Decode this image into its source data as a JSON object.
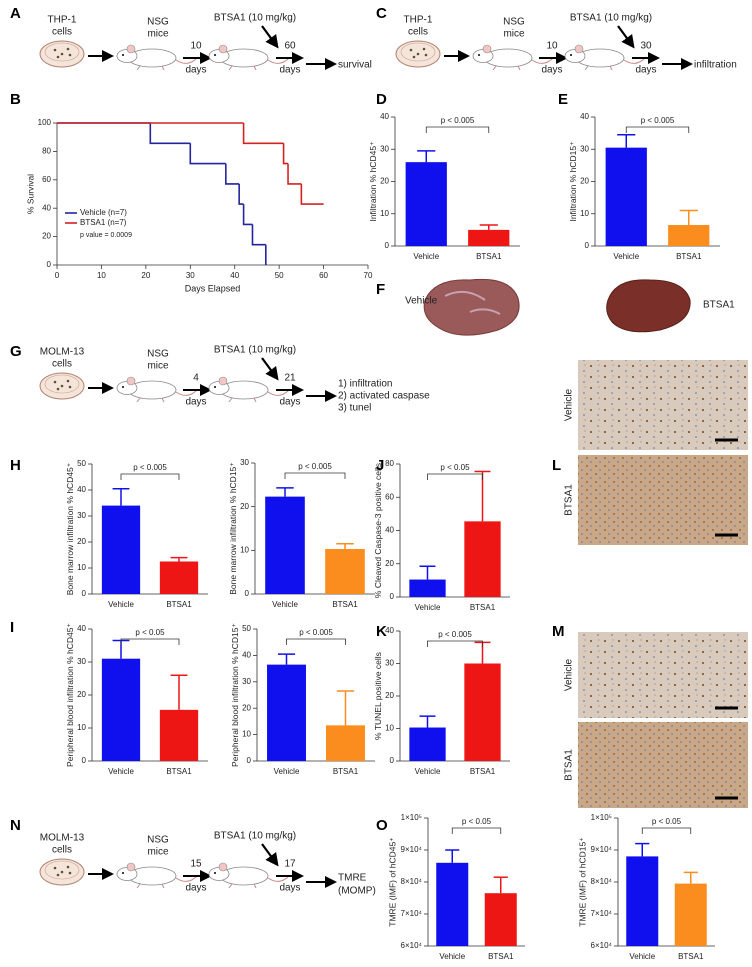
{
  "panel_labels": [
    "A",
    "B",
    "C",
    "D",
    "E",
    "F",
    "G",
    "H",
    "I",
    "J",
    "K",
    "L",
    "M",
    "N",
    "O"
  ],
  "schematics": [
    {
      "cells": [
        "THP-1",
        "cells"
      ],
      "mice": [
        "NSG",
        "mice"
      ],
      "treatment": "BTSA1 (10 mg/kg)",
      "interval_1": [
        "10",
        "days"
      ],
      "interval_2": [
        "60",
        "days"
      ],
      "outcome": [
        "survival"
      ]
    },
    {
      "cells": [
        "THP-1",
        "cells"
      ],
      "mice": [
        "NSG",
        "mice"
      ],
      "treatment": "BTSA1 (10 mg/kg)",
      "interval_1": [
        "10",
        "days"
      ],
      "interval_2": [
        "30",
        "days"
      ],
      "outcome": [
        "infiltration"
      ]
    },
    {
      "cells": [
        "MOLM-13",
        "cells"
      ],
      "mice": [
        "NSG",
        "mice"
      ],
      "treatment": "BTSA1 (10 mg/kg)",
      "interval_1": [
        "4",
        "days"
      ],
      "interval_2": [
        "21",
        "days"
      ],
      "outcome": [
        "1) infiltration",
        "2) activated caspase",
        "3) tunel"
      ]
    },
    {
      "cells": [
        "MOLM-13",
        "cells"
      ],
      "mice": [
        "NSG",
        "mice"
      ],
      "treatment": "BTSA1 (10 mg/kg)",
      "interval_1": [
        "15",
        "days"
      ],
      "interval_2": [
        "17",
        "days"
      ],
      "outcome": [
        "TMRE",
        "(MOMP)"
      ]
    }
  ],
  "liver_photos": {
    "labels": [
      "Vehicle",
      "BTSA1"
    ]
  },
  "histology": [
    {
      "labels": [
        "Vehicle",
        "BTSA1"
      ]
    },
    {
      "labels": [
        "Vehicle",
        "BTSA1"
      ]
    }
  ],
  "chart_data": [
    {
      "type": "step",
      "x_label": "Days Elapsed",
      "y_label": "% Survival",
      "xlim": [
        0,
        70
      ],
      "xticks": [
        0,
        10,
        20,
        30,
        40,
        50,
        60,
        70
      ],
      "ylim": [
        0,
        100
      ],
      "yticks": [
        0,
        20,
        40,
        60,
        80,
        100
      ],
      "legend": "lower left",
      "annotation": "p value = 0.0009",
      "series": [
        {
          "name": "Vehicle (n=7)",
          "color": "#24249e",
          "x": [
            0,
            21,
            30,
            38,
            41,
            42,
            44,
            47
          ],
          "values": [
            100,
            85.7,
            71.4,
            57.1,
            42.9,
            28.6,
            14.3,
            0
          ]
        },
        {
          "name": "BTSA1 (n=7)",
          "color": "#d42222",
          "x": [
            0,
            42,
            51,
            52,
            55,
            60
          ],
          "values": [
            100,
            85.7,
            71.4,
            57.1,
            42.9,
            42.9
          ]
        }
      ]
    },
    {
      "type": "bar",
      "y_label": "Infiltration %  hCD45⁺",
      "categories": [
        "Vehicle",
        "BTSA1"
      ],
      "values": [
        26,
        5
      ],
      "errors": [
        3.5,
        1.5
      ],
      "colors": [
        "#1010ee",
        "#ee1515"
      ],
      "ylim": [
        0,
        40
      ],
      "yticks": [
        0,
        10,
        20,
        30,
        40
      ],
      "annotation": "p < 0.005"
    },
    {
      "type": "bar",
      "y_label": "Infiltration %  hCD15⁺",
      "categories": [
        "Vehicle",
        "BTSA1"
      ],
      "values": [
        30.5,
        6.5
      ],
      "errors": [
        4,
        4.5
      ],
      "colors": [
        "#1010ee",
        "#fb8c1e"
      ],
      "ylim": [
        0,
        40
      ],
      "yticks": [
        0,
        10,
        20,
        30,
        40
      ],
      "annotation": "p < 0.005"
    },
    {
      "type": "bar",
      "y_label": "Bone marrow infiltration % hCD45⁺",
      "categories": [
        "Vehicle",
        "BTSA1"
      ],
      "values": [
        34,
        12.5
      ],
      "errors": [
        6.5,
        1.5
      ],
      "colors": [
        "#1010ee",
        "#ee1515"
      ],
      "ylim": [
        0,
        50
      ],
      "yticks": [
        0,
        10,
        20,
        30,
        40,
        50
      ],
      "annotation": "p < 0.005"
    },
    {
      "type": "bar",
      "y_label": "Bone marrow infiltration % hCD15⁺",
      "categories": [
        "Vehicle",
        "BTSA1"
      ],
      "values": [
        22.3,
        10.3
      ],
      "errors": [
        2,
        1.2
      ],
      "colors": [
        "#1010ee",
        "#fb8c1e"
      ],
      "ylim": [
        0,
        30
      ],
      "yticks": [
        0,
        10,
        20,
        30
      ],
      "annotation": "p < 0.005"
    },
    {
      "type": "bar",
      "y_label": "% Cleaved Caspase-3 positive cells",
      "categories": [
        "Vehicle",
        "BTSA1"
      ],
      "values": [
        10.5,
        45.5
      ],
      "errors": [
        8,
        30
      ],
      "colors": [
        "#1010ee",
        "#ee1515"
      ],
      "ylim": [
        0,
        80
      ],
      "yticks": [
        0,
        20,
        40,
        60,
        80
      ],
      "annotation": "p < 0.05"
    },
    {
      "type": "bar",
      "y_label": "Peripheral blood infiltration % hCD45⁺",
      "categories": [
        "Vehicle",
        "BTSA1"
      ],
      "values": [
        31,
        15.5
      ],
      "errors": [
        5.5,
        10.5
      ],
      "colors": [
        "#1010ee",
        "#ee1515"
      ],
      "ylim": [
        0,
        40
      ],
      "yticks": [
        0,
        10,
        20,
        30,
        40
      ],
      "annotation": "p < 0.05"
    },
    {
      "type": "bar",
      "y_label": "Peripheral blood infiltration % hCD15⁺",
      "categories": [
        "Vehicle",
        "BTSA1"
      ],
      "values": [
        36.5,
        13.5
      ],
      "errors": [
        4,
        13
      ],
      "colors": [
        "#1010ee",
        "#fb8c1e"
      ],
      "ylim": [
        0,
        50
      ],
      "yticks": [
        0,
        10,
        20,
        30,
        40,
        50
      ],
      "annotation": "p < 0.005"
    },
    {
      "type": "bar",
      "y_label": "% TUNEL positive cells",
      "categories": [
        "Vehicle",
        "BTSA1"
      ],
      "values": [
        10.3,
        30
      ],
      "errors": [
        3.5,
        6.5
      ],
      "colors": [
        "#1010ee",
        "#ee1515"
      ],
      "ylim": [
        0,
        40
      ],
      "yticks": [
        0,
        10,
        20,
        30,
        40
      ],
      "annotation": "p < 0.005"
    },
    {
      "type": "bar",
      "y_label": "TMRE (IMF) of hCD45⁺",
      "categories": [
        "Vehicle",
        "BTSA1"
      ],
      "values": [
        86000,
        76500
      ],
      "errors": [
        4000,
        5000
      ],
      "colors": [
        "#1010ee",
        "#ee1515"
      ],
      "ylim": [
        60000,
        100000
      ],
      "yticks": [
        {
          "value": 60000,
          "label": "6×10⁴"
        },
        {
          "value": 70000,
          "label": "7×10⁴"
        },
        {
          "value": 80000,
          "label": "8×10⁴"
        },
        {
          "value": 90000,
          "label": "9×10⁴"
        },
        {
          "value": 100000,
          "label": "1×10⁵"
        }
      ],
      "annotation": "p < 0.05"
    },
    {
      "type": "bar",
      "y_label": "TMRE (IMF) of hCD15⁺",
      "categories": [
        "Vehicle",
        "BTSA1"
      ],
      "values": [
        88000,
        79500
      ],
      "errors": [
        4000,
        3500
      ],
      "colors": [
        "#1010ee",
        "#fb8c1e"
      ],
      "ylim": [
        60000,
        100000
      ],
      "yticks": [
        {
          "value": 60000,
          "label": "6×10⁴"
        },
        {
          "value": 70000,
          "label": "7×10⁴"
        },
        {
          "value": 80000,
          "label": "8×10⁴"
        },
        {
          "value": 90000,
          "label": "9×10⁴"
        },
        {
          "value": 100000,
          "label": "1×10⁵"
        }
      ],
      "annotation": "p < 0.05"
    }
  ]
}
